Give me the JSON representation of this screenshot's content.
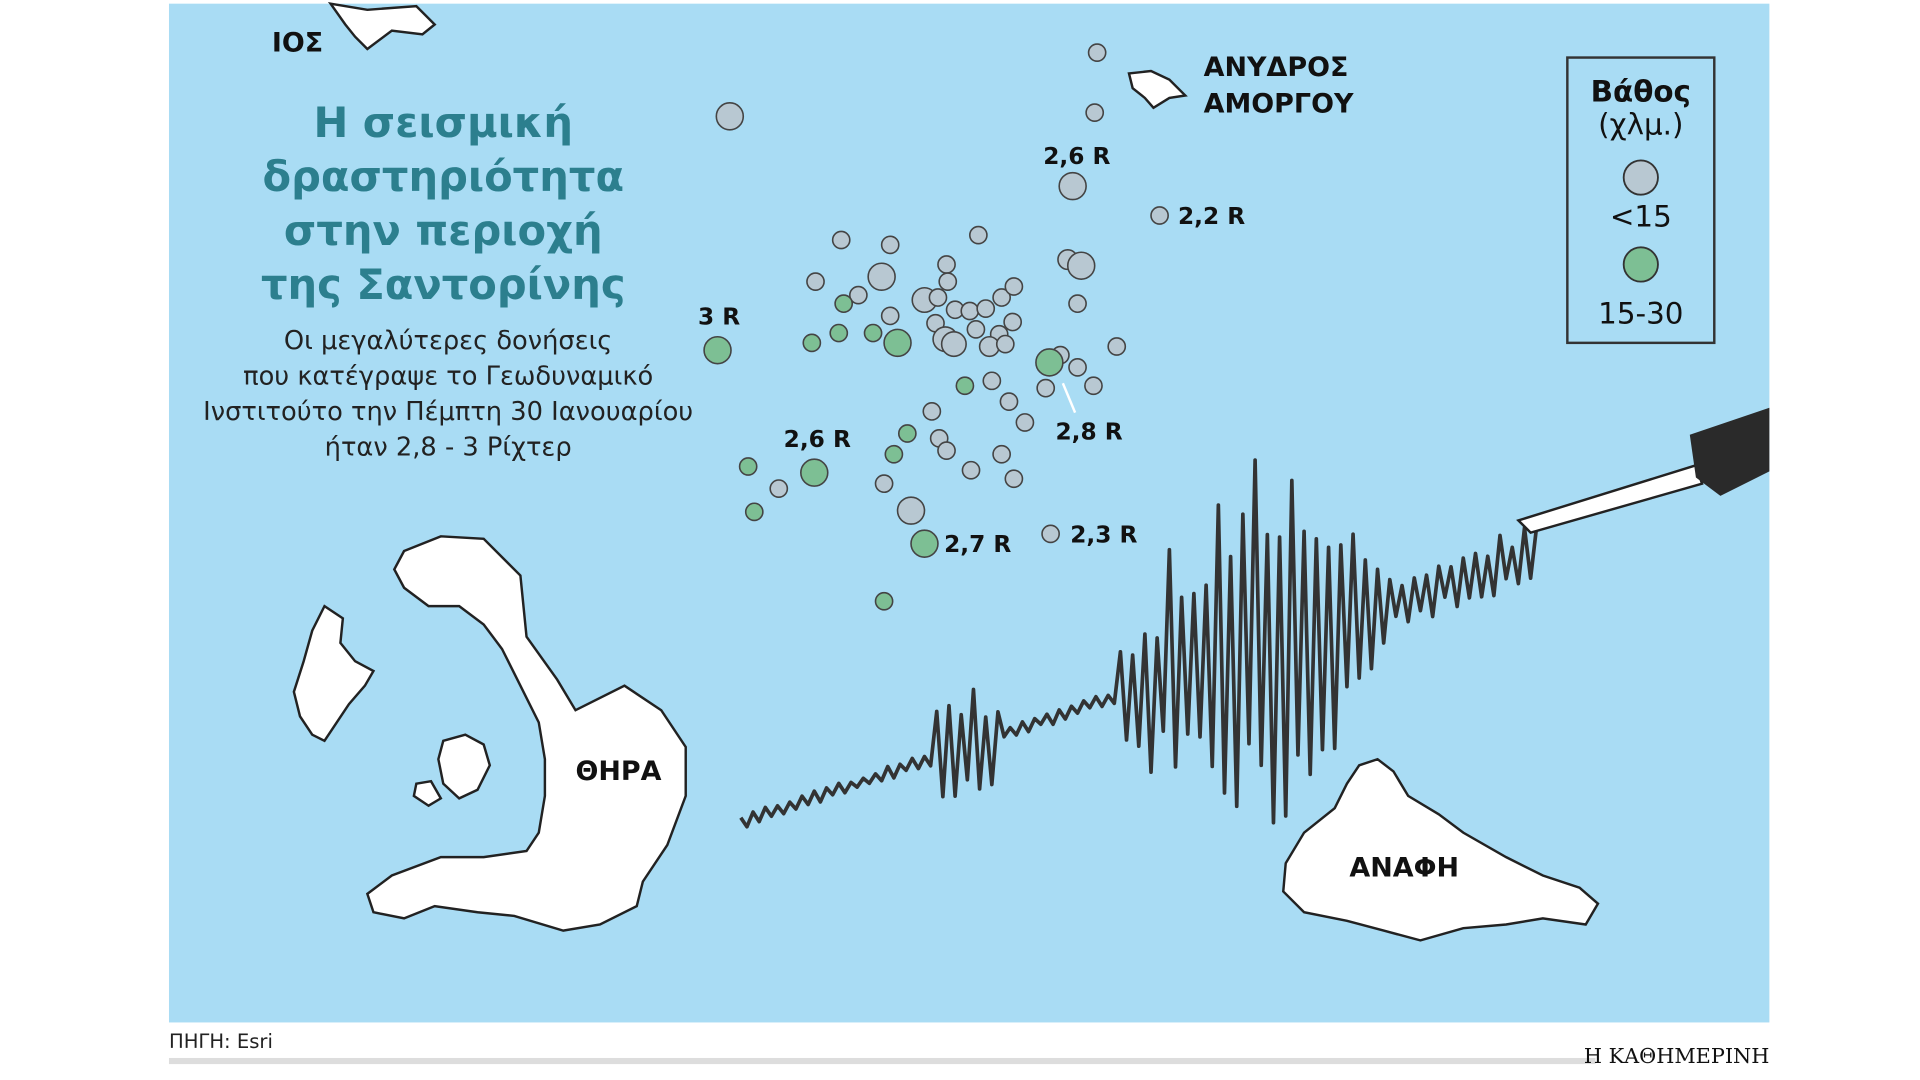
{
  "title": [
    "Η σεισμική",
    "δραστηριότητα",
    "στην περιοχή",
    "της Σαντορίνης"
  ],
  "subtitle": [
    "Οι μεγαλύτερες δονήσεις",
    "που κατέγραψε το Γεωδυναμικό",
    "Ινστιτούτο την Πέμπτη 30 Ιανουαρίου",
    "ήταν 2,8 - 3 Ρίχτερ"
  ],
  "places": {
    "ios": "ΙΟΣ",
    "anydros": [
      "ΑΝΥΔΡΟΣ",
      "ΑΜΟΡΓΟΥ"
    ],
    "thira": "ΘΗΡΑ",
    "anafi": "ΑΝΑΦΗ"
  },
  "magnitudes": [
    "2,6 R",
    "2,2 R",
    "3 R",
    "2,8 R",
    "2,6 R",
    "2,7 R",
    "2,3 R"
  ],
  "legend": {
    "title": "Βάθος",
    "unit": "(χλμ.)",
    "items": [
      "<15",
      "15-30"
    ]
  },
  "source": "ΠΗΓΗ: Esri",
  "publisher": "Η ΚΑΘΗΜΕΡΙΝΗ"
}
